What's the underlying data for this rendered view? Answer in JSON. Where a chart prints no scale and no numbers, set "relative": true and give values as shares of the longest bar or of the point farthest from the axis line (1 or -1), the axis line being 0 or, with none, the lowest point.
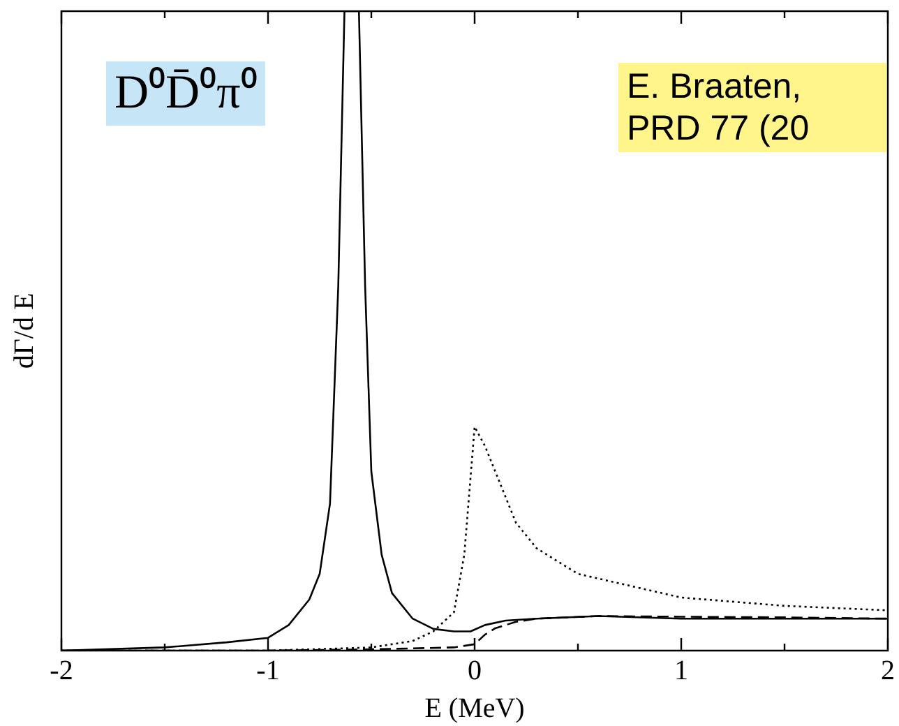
{
  "chart_data": {
    "type": "line",
    "relative": true,
    "xlabel": "E (MeV)",
    "ylabel": "dΓ/d E",
    "annotations": [
      "D⁰D̄⁰π⁰",
      "E. Braaten, PRD 77 (20"
    ],
    "xlim": [
      -2,
      2
    ],
    "xticks": [
      -2,
      {
        "value": -1.5,
        "label": null
      },
      -1,
      {
        "value": -0.5,
        "label": null
      },
      0,
      {
        "value": 0.5,
        "label": null
      },
      1,
      {
        "value": 1.5,
        "label": null
      },
      2
    ],
    "grid": false,
    "legend": false,
    "marker": "none",
    "series": [
      {
        "color": "#000000",
        "line_style": "solid",
        "x": [
          -2,
          -1.5,
          -1.2,
          -1,
          -0.9,
          -0.8,
          -0.75,
          -0.7,
          -0.66,
          -0.63,
          -0.6,
          -0.56,
          -0.53,
          -0.5,
          -0.45,
          -0.4,
          -0.3,
          -0.2,
          -0.1,
          -0.02,
          0.05,
          0.15,
          0.3,
          0.6,
          1,
          1.5,
          2
        ],
        "values": [
          0,
          0.005,
          0.013,
          0.02,
          0.04,
          0.08,
          0.12,
          0.23,
          0.57,
          1,
          1,
          1,
          0.57,
          0.28,
          0.15,
          0.09,
          0.05,
          0.034,
          0.03,
          0.03,
          0.04,
          0.047,
          0.05,
          0.054,
          0.05,
          0.05,
          0.05
        ]
      },
      {
        "color": "#000000",
        "line_style": "dashed",
        "x": [
          -2,
          -1,
          -0.5,
          -0.1,
          0,
          0.05,
          0.1,
          0.2,
          0.3,
          0.6,
          1,
          1.5,
          2
        ],
        "values": [
          0,
          0,
          0.002,
          0.005,
          0.01,
          0.025,
          0.035,
          0.045,
          0.05,
          0.054,
          0.053,
          0.052,
          0.05
        ]
      },
      {
        "color": "#000000",
        "line_style": "dotted",
        "x": [
          -2,
          -1,
          -0.5,
          -0.3,
          -0.2,
          -0.1,
          -0.05,
          -0.02,
          0,
          0.05,
          0.1,
          0.2,
          0.3,
          0.5,
          1,
          1.5,
          2
        ],
        "values": [
          0,
          0,
          0.005,
          0.015,
          0.03,
          0.06,
          0.15,
          0.27,
          0.35,
          0.32,
          0.28,
          0.2,
          0.16,
          0.12,
          0.083,
          0.07,
          0.063
        ]
      }
    ]
  }
}
